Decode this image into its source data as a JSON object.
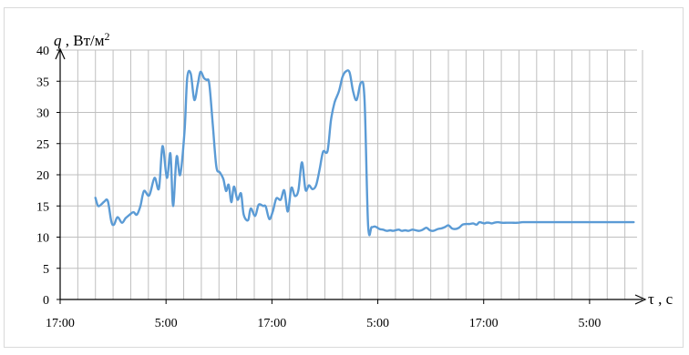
{
  "chart_data": {
    "type": "line",
    "ylabel": {
      "symbol": "q",
      "sep": " , ",
      "unit": "Вт/м",
      "exp": "2"
    },
    "xlabel": {
      "symbol": "τ",
      "sep": " , ",
      "unit": "с"
    },
    "ylim": [
      0,
      40
    ],
    "yticks": [
      0,
      5,
      10,
      15,
      20,
      25,
      30,
      35,
      40
    ],
    "x_ticks": [
      "17:00",
      "5:00",
      "17:00",
      "5:00",
      "17:00",
      "5:00"
    ],
    "x_tick_hours": [
      0,
      12,
      24,
      36,
      48,
      60
    ],
    "xlim_hours": [
      0,
      66
    ],
    "grid": true,
    "line_color": "#5b9bd5",
    "series": [
      {
        "x_hours": [
          4.0,
          4.3,
          4.7,
          5.0,
          5.4,
          5.8,
          6.1,
          6.5,
          7.0,
          7.4,
          7.8,
          8.3,
          8.7,
          9.1,
          9.5,
          10.1,
          10.7,
          11.2,
          11.6,
          12.1,
          12.5,
          12.8,
          13.2,
          13.6,
          14.1,
          14.4,
          14.8,
          15.2,
          15.6,
          15.9,
          16.3,
          16.6,
          16.9,
          17.3,
          17.7,
          18.1,
          18.5,
          18.8,
          19.1,
          19.4,
          19.7,
          20.1,
          20.5,
          20.8,
          21.3,
          21.6,
          22.1,
          22.5,
          23.0,
          23.3,
          23.7,
          24.1,
          24.5,
          25.0,
          25.4,
          25.8,
          26.2,
          26.6,
          27.0,
          27.4,
          27.8,
          28.2,
          28.6,
          29.0,
          29.4,
          29.8,
          30.3,
          30.7,
          31.1,
          31.6,
          32.0,
          32.4,
          32.8,
          33.2,
          33.6,
          34.1,
          34.5,
          34.9,
          35.3,
          35.7,
          36.2,
          36.6,
          37.0,
          37.4,
          37.7,
          38.0,
          38.4,
          38.7,
          39.1,
          39.5,
          39.9,
          40.3,
          40.7,
          41.1,
          41.5,
          41.9,
          42.3,
          42.8,
          43.2,
          43.6,
          44.0,
          44.4,
          44.8,
          45.2,
          45.6,
          46.0,
          46.4,
          46.8,
          47.2,
          47.5,
          47.8,
          48.1,
          48.3,
          48.6,
          48.9,
          49.2,
          49.6,
          50.1,
          50.6,
          51.2,
          51.8,
          52.4,
          53.0,
          53.6,
          54.2,
          54.8,
          55.4,
          55.8,
          56.3,
          56.8,
          57.3,
          57.8,
          58.3,
          58.8,
          59.3,
          59.8,
          60.3,
          60.8,
          61.3,
          61.9,
          62.5,
          63.1,
          63.7,
          64.2,
          64.6,
          65.0
        ],
        "values": [
          16.3,
          15.0,
          15.3,
          15.7,
          15.8,
          12.5,
          12.0,
          13.2,
          12.3,
          13.0,
          13.5,
          14.0,
          13.6,
          15.0,
          17.4,
          16.7,
          19.5,
          17.8,
          24.6,
          19.5,
          23.4,
          15.0,
          22.9,
          20.0,
          27.0,
          35.5,
          36.2,
          32.0,
          34.5,
          36.5,
          35.5,
          35.2,
          34.6,
          28.0,
          21.3,
          20.4,
          19.3,
          17.4,
          18.4,
          15.6,
          18.1,
          16.0,
          17.0,
          13.6,
          12.7,
          14.6,
          13.4,
          15.2,
          15.0,
          14.9,
          12.9,
          14.1,
          16.2,
          16.0,
          17.5,
          14.1,
          17.9,
          16.6,
          17.5,
          22.0,
          17.6,
          18.3,
          17.7,
          18.3,
          20.8,
          23.7,
          23.8,
          28.8,
          31.6,
          33.4,
          35.7,
          36.6,
          36.4,
          33.4,
          32.0,
          34.8,
          32.0,
          11.9,
          11.6,
          11.7,
          11.3,
          11.2,
          11.0,
          11.1,
          11.0,
          11.1,
          11.2,
          11.0,
          11.1,
          11.0,
          11.2,
          11.1,
          11.0,
          11.2,
          11.5,
          11.1,
          11.0,
          11.3,
          11.4,
          11.6,
          11.9,
          11.4,
          11.3,
          11.5,
          12.0,
          12.1,
          12.1,
          12.2,
          12.0,
          12.4,
          12.3,
          12.2,
          12.3,
          12.3,
          12.2,
          12.3,
          12.4,
          12.3,
          12.3,
          12.3,
          12.3,
          12.4,
          12.4,
          12.4,
          12.4,
          12.4,
          12.4,
          12.4,
          12.4,
          12.4,
          12.4,
          12.4,
          12.4,
          12.4,
          12.4,
          12.4,
          12.4,
          12.4,
          12.4,
          12.4,
          12.4,
          12.4,
          12.4,
          12.4,
          12.4,
          12.4
        ]
      }
    ]
  }
}
